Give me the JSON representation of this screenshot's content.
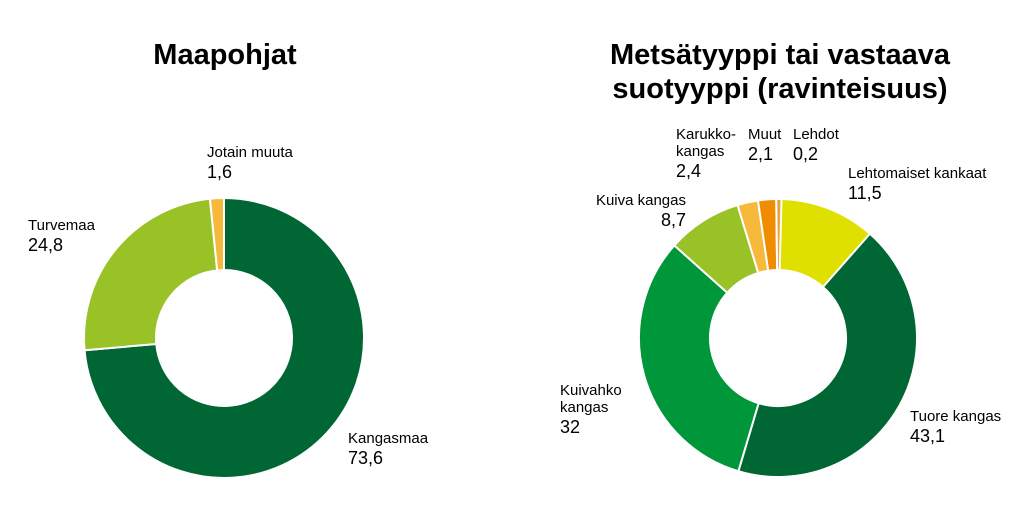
{
  "chart_data": [
    {
      "type": "pie",
      "title": "Maapohjat",
      "slices": [
        {
          "label": "Kangasmaa",
          "value": 73.6,
          "value_text": "73,6",
          "color": "#006633"
        },
        {
          "label": "Turvemaa",
          "value": 24.8,
          "value_text": "24,8",
          "color": "#99c227"
        },
        {
          "label": "Jotain muuta",
          "value": 1.6,
          "value_text": "1,6",
          "color": "#f6b93b"
        }
      ]
    },
    {
      "type": "pie",
      "title": "Metsätyyppi tai vastaava\nsuotyyppi (ravinteisuus)",
      "slices": [
        {
          "label": "Lehtomaiset kankaat",
          "value": 11.5,
          "value_text": "11,5",
          "color": "#dfe000"
        },
        {
          "label": "Tuore kangas",
          "value": 43.1,
          "value_text": "43,1",
          "color": "#006633"
        },
        {
          "label": "Kuivahko\nkangas",
          "value": 32,
          "value_text": "32",
          "color": "#00963a"
        },
        {
          "label": "Kuiva kangas",
          "value": 8.7,
          "value_text": "8,7",
          "color": "#99c227"
        },
        {
          "label": "Karukko-\nkangas",
          "value": 2.4,
          "value_text": "2,4",
          "color": "#f6b93b"
        },
        {
          "label": "Muut",
          "value": 2.1,
          "value_text": "2,1",
          "color": "#f08c00"
        },
        {
          "label": "Lehdot",
          "value": 0.2,
          "value_text": "0,2",
          "color": "#e7a23b"
        }
      ]
    }
  ]
}
